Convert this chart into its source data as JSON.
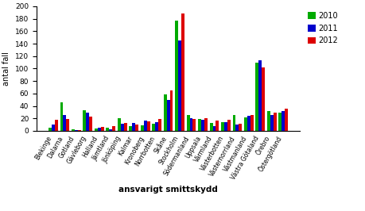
{
  "categories": [
    "Blekinge",
    "Dalarna",
    "Gotland",
    "Gävleborg",
    "Halland",
    "Jämtland",
    "Jönköping",
    "Kalmar",
    "Kronoberg",
    "Norrbotten",
    "Skåne",
    "Stockholm",
    "Södermanland",
    "Uppsala",
    "Värmland",
    "Västerbotten",
    "Västernorrland",
    "Västmanland",
    "Västra Götaland",
    "Örebro",
    "Östergötland"
  ],
  "values_2010": [
    5,
    46,
    2,
    33,
    4,
    5,
    20,
    7,
    9,
    11,
    59,
    177,
    25,
    19,
    13,
    14,
    25,
    22,
    110,
    32,
    29
  ],
  "values_2011": [
    10,
    26,
    1,
    29,
    5,
    3,
    12,
    13,
    16,
    14,
    49,
    145,
    20,
    18,
    7,
    14,
    10,
    24,
    113,
    25,
    32
  ],
  "values_2012": [
    18,
    19,
    1,
    23,
    6,
    8,
    13,
    10,
    15,
    19,
    65,
    188,
    19,
    20,
    16,
    18,
    11,
    26,
    102,
    29,
    35
  ],
  "color_2010": "#00aa00",
  "color_2011": "#0000cc",
  "color_2012": "#dd0000",
  "ylabel": "antal fall",
  "xlabel": "ansvarigt smittskydd",
  "ylim": [
    0,
    200
  ],
  "yticks": [
    0,
    20,
    40,
    60,
    80,
    100,
    120,
    140,
    160,
    180,
    200
  ],
  "legend_labels": [
    "2010",
    "2011",
    "2012"
  ],
  "bg_color": "#ffffff"
}
